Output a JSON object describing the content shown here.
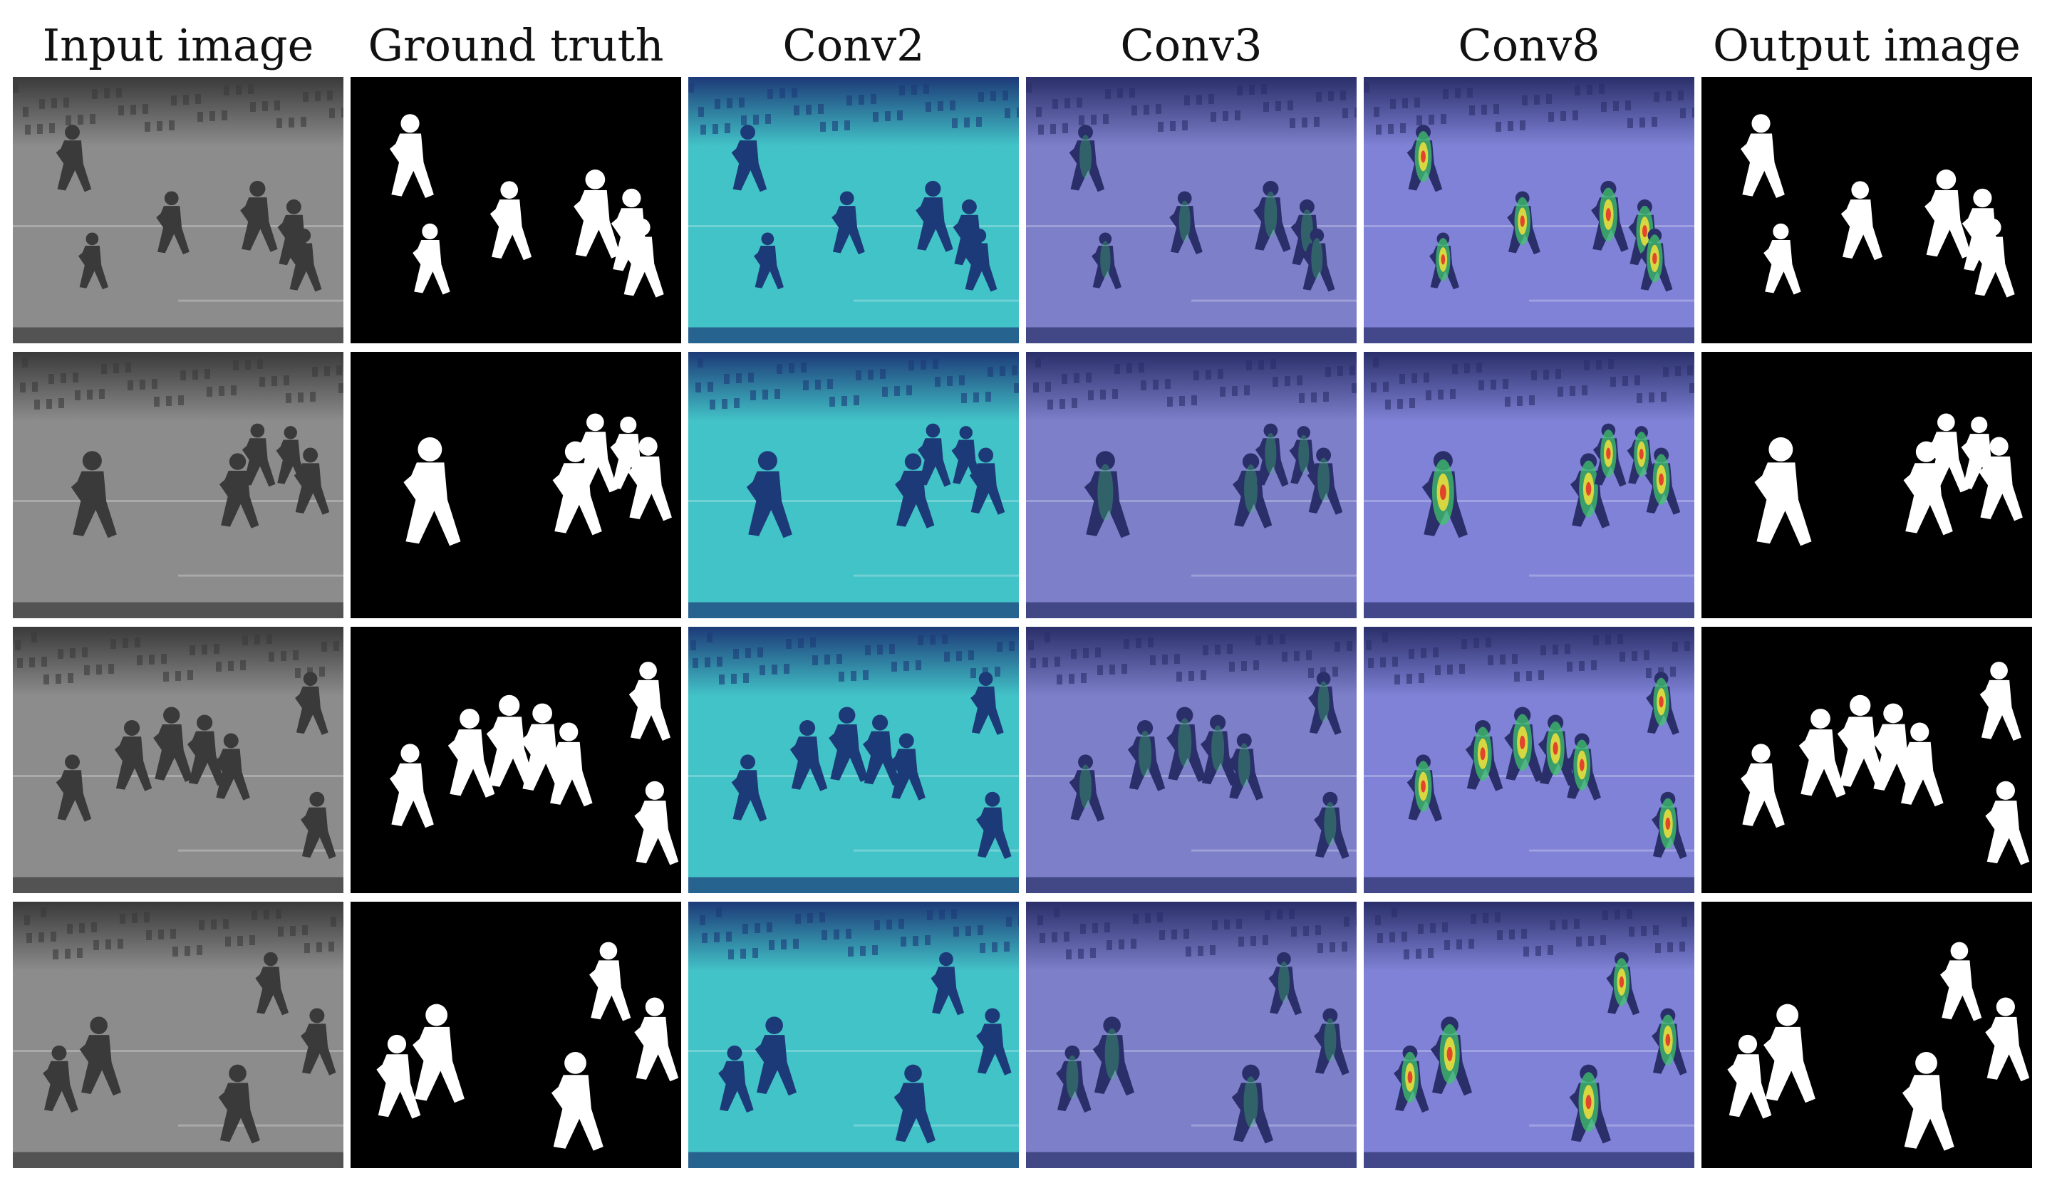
{
  "columns": [
    {
      "id": "input",
      "label": "Input image",
      "palette": "gray"
    },
    {
      "id": "gt",
      "label": "Ground truth",
      "palette": "mask"
    },
    {
      "id": "conv2",
      "label": "Conv2",
      "palette": "teal"
    },
    {
      "id": "conv3",
      "label": "Conv3",
      "palette": "violet"
    },
    {
      "id": "conv8",
      "label": "Conv8",
      "palette": "heat"
    },
    {
      "id": "output",
      "label": "Output image",
      "palette": "mask"
    }
  ],
  "rows": [
    {
      "figures": [
        [
          0.18,
          0.34,
          0.85
        ],
        [
          0.48,
          0.58,
          0.8
        ],
        [
          0.74,
          0.56,
          0.9
        ],
        [
          0.85,
          0.62,
          0.85
        ],
        [
          0.24,
          0.72,
          0.72
        ],
        [
          0.88,
          0.72,
          0.8
        ]
      ]
    },
    {
      "figures": [
        [
          0.24,
          0.58,
          1.1
        ],
        [
          0.68,
          0.56,
          0.95
        ],
        [
          0.74,
          0.42,
          0.8
        ],
        [
          0.84,
          0.42,
          0.75
        ],
        [
          0.9,
          0.52,
          0.85
        ]
      ]
    },
    {
      "figures": [
        [
          0.18,
          0.64,
          0.85
        ],
        [
          0.36,
          0.52,
          0.9
        ],
        [
          0.48,
          0.48,
          0.95
        ],
        [
          0.58,
          0.5,
          0.9
        ],
        [
          0.66,
          0.56,
          0.85
        ],
        [
          0.9,
          0.32,
          0.8
        ],
        [
          0.92,
          0.78,
          0.85
        ]
      ]
    },
    {
      "figures": [
        [
          0.14,
          0.7,
          0.85
        ],
        [
          0.26,
          0.62,
          1.0
        ],
        [
          0.78,
          0.34,
          0.8
        ],
        [
          0.68,
          0.8,
          1.0
        ],
        [
          0.92,
          0.56,
          0.85
        ]
      ]
    }
  ],
  "colors": {
    "background": "#ffffff",
    "mask_bg": "#000000",
    "mask_fg": "#ffffff",
    "gray_track": "#8c8c8c",
    "gray_crowd": "#3a3a3a",
    "teal_track": "#42c3c7",
    "teal_crowd": "#1d3a78",
    "violet_track": "#7d7fc9",
    "violet_crowd": "#2a2f6a",
    "heat_track": "#7f82d6",
    "heat_crowd": "#2a2f6a",
    "heat_green": "#3fc46b",
    "heat_yellow": "#f3e23a",
    "heat_red": "#e2352a"
  }
}
